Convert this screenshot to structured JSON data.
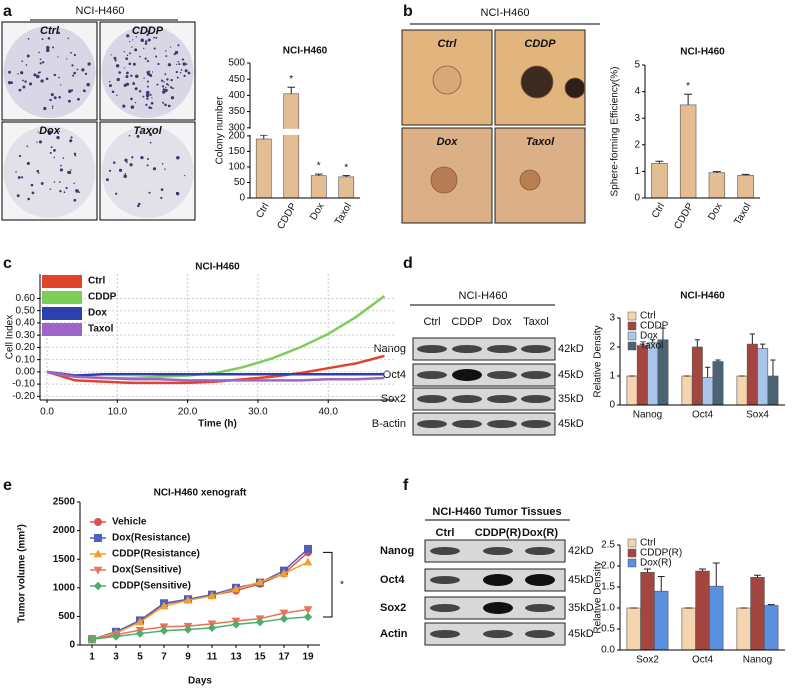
{
  "figure": {
    "panel_labels": [
      "a",
      "b",
      "c",
      "d",
      "e",
      "f"
    ],
    "colony_photos": {
      "title": "NCI-H460",
      "labels": [
        "Ctrl",
        "CDDP",
        "Dox",
        "Taxol"
      ]
    },
    "sphere_photos": {
      "title": "NCI-H460",
      "labels": [
        "Ctrl",
        "CDDP",
        "Dox",
        "Taxol"
      ]
    },
    "blot_d": {
      "title": "NCI-H460",
      "lanes": [
        "Ctrl",
        "CDDP",
        "Dox",
        "Taxol"
      ],
      "rows": [
        "Nanog",
        "Oct4",
        "Sox2",
        "B-actin"
      ],
      "sizes": [
        "42kD",
        "45kD",
        "35kD",
        "45kD"
      ]
    },
    "blot_f": {
      "title": "NCI-H460 Tumor Tissues",
      "lanes": [
        "Ctrl",
        "CDDP(R)",
        "Dox(R)"
      ],
      "rows": [
        "Nanog",
        "Oct4",
        "Sox2",
        "Actin"
      ],
      "sizes": [
        "42kD",
        "45kD",
        "35kD",
        "45kD"
      ]
    }
  },
  "chart_data": [
    {
      "type": "bar",
      "title": "NCI-H460",
      "y_label": "Colony number",
      "categories": [
        "Ctrl",
        "CDDP",
        "Dox",
        "Taxol"
      ],
      "values": [
        190,
        405,
        72,
        68
      ],
      "errors": [
        20,
        20,
        5,
        4
      ],
      "markers": [
        null,
        "*",
        "*",
        "*"
      ],
      "color": "#e3bd94",
      "ylim": [
        0,
        500
      ],
      "ybreak": [
        200,
        300
      ],
      "yticks": [
        0,
        50,
        100,
        150,
        200,
        300,
        350,
        400,
        450,
        500
      ]
    },
    {
      "type": "bar",
      "title": "NCI-H460",
      "y_label": "Sphere-forming Efficiency(%)",
      "categories": [
        "Ctrl",
        "CDDP",
        "Dox",
        "Taxol"
      ],
      "values": [
        1.3,
        3.5,
        0.95,
        0.85
      ],
      "errors": [
        0.08,
        0.4,
        0.04,
        0.04
      ],
      "markers": [
        null,
        "*",
        null,
        null
      ],
      "color": "#e3bd94",
      "ylim": [
        0,
        5
      ],
      "yticks": [
        0,
        1,
        2,
        3,
        4,
        5
      ]
    },
    {
      "type": "line",
      "title": "NCI-H460",
      "x_label": "Time (h)",
      "y_label": "Cell Index",
      "x": [
        0,
        4,
        8,
        12,
        16,
        20,
        24,
        28,
        32,
        36,
        40,
        44,
        48
      ],
      "series": [
        {
          "name": "Ctrl",
          "color": "#e0442a",
          "values": [
            0.0,
            -0.07,
            -0.08,
            -0.09,
            -0.09,
            -0.09,
            -0.08,
            -0.06,
            -0.04,
            -0.01,
            0.03,
            0.07,
            0.13
          ]
        },
        {
          "name": "CDDP",
          "color": "#7ccd5a",
          "values": [
            0.0,
            -0.04,
            -0.05,
            -0.05,
            -0.04,
            -0.03,
            -0.01,
            0.04,
            0.11,
            0.2,
            0.31,
            0.45,
            0.62
          ]
        },
        {
          "name": "Dox",
          "color": "#2e3fb0",
          "values": [
            0.0,
            -0.03,
            -0.02,
            -0.02,
            -0.02,
            -0.02,
            -0.02,
            -0.02,
            -0.02,
            -0.02,
            -0.02,
            -0.02,
            -0.02
          ]
        },
        {
          "name": "Taxol",
          "color": "#a064c8",
          "values": [
            0.0,
            -0.04,
            -0.05,
            -0.06,
            -0.06,
            -0.07,
            -0.07,
            -0.07,
            -0.07,
            -0.07,
            -0.06,
            -0.06,
            -0.05
          ]
        }
      ],
      "xlim": [
        -1,
        49.5
      ],
      "ylim": [
        -0.23,
        0.8
      ],
      "xticks": [
        {
          "value": 0,
          "label": "0.0"
        },
        {
          "value": 10,
          "label": "10.0"
        },
        {
          "value": 20,
          "label": "20.0"
        },
        {
          "value": 30,
          "label": "30.0"
        },
        {
          "value": 40,
          "label": "40.0"
        }
      ],
      "yticks": [
        {
          "value": -0.2,
          "label": "-0.20"
        },
        {
          "value": -0.1,
          "label": "-0.10"
        },
        {
          "value": 0,
          "label": "0.00"
        },
        {
          "value": 0.1,
          "label": "0.10"
        },
        {
          "value": 0.2,
          "label": "0.20"
        },
        {
          "value": 0.3,
          "label": "0.30"
        },
        {
          "value": 0.4,
          "label": "0.40"
        },
        {
          "value": 0.5,
          "label": "0.50"
        },
        {
          "value": 0.6,
          "label": "0.60"
        }
      ],
      "grid": true,
      "legend": "upper left"
    },
    {
      "type": "bar",
      "title": "NCI-H460",
      "y_label": "Relative Density",
      "categories": [
        "Nanog",
        "Oct4",
        "Sox4"
      ],
      "series": [
        {
          "name": "Ctrl",
          "color": "#f5d5b0",
          "values": [
            1,
            1,
            1
          ],
          "errors": [
            0,
            0,
            0
          ]
        },
        {
          "name": "CDDP",
          "color": "#a3463f",
          "values": [
            2.05,
            2.0,
            2.1
          ],
          "errors": [
            0.05,
            0.25,
            0.35
          ]
        },
        {
          "name": "Dox",
          "color": "#a9c6ea",
          "values": [
            2.15,
            0.95,
            1.95
          ],
          "errors": [
            0.1,
            0.35,
            0.15
          ]
        },
        {
          "name": "Taxol",
          "color": "#4b6473",
          "values": [
            2.25,
            1.5,
            1.0
          ],
          "errors": [
            0.4,
            0.05,
            0.55
          ]
        }
      ],
      "ylim": [
        0,
        3
      ],
      "yticks": [
        0,
        1,
        2,
        3
      ],
      "legend": "upper left"
    },
    {
      "type": "line",
      "title": "NCI-H460 xenograft",
      "x_label": "Days",
      "y_label": "Tumor volume (mm³)",
      "x": [
        1,
        3,
        5,
        7,
        9,
        11,
        13,
        15,
        17,
        19
      ],
      "series": [
        {
          "name": "Vehicle",
          "color": "#d9534f",
          "marker": "circle",
          "values": [
            100,
            220,
            420,
            720,
            790,
            870,
            950,
            1070,
            1250,
            1620
          ]
        },
        {
          "name": "Dox(Resistance)",
          "color": "#4f5fbf",
          "marker": "square",
          "values": [
            100,
            230,
            430,
            730,
            800,
            880,
            1000,
            1090,
            1300,
            1680
          ]
        },
        {
          "name": "CDDP(Resistance)",
          "color": "#f0a030",
          "marker": "triangle-up",
          "values": [
            100,
            210,
            400,
            680,
            780,
            860,
            980,
            1100,
            1250,
            1450
          ]
        },
        {
          "name": "Dox(Sensitive)",
          "color": "#e8735a",
          "marker": "triangle-down",
          "values": [
            100,
            180,
            260,
            320,
            330,
            370,
            420,
            460,
            560,
            620
          ]
        },
        {
          "name": "CDDP(Sensitive)",
          "color": "#4caf6a",
          "marker": "diamond",
          "values": [
            100,
            150,
            200,
            250,
            270,
            300,
            360,
            400,
            460,
            490
          ]
        }
      ],
      "xlim": [
        0,
        20
      ],
      "ylim": [
        0,
        2500
      ],
      "xticks": [
        1,
        3,
        5,
        7,
        9,
        11,
        13,
        15,
        17,
        19
      ],
      "yticks": [
        0,
        500,
        1000,
        1500,
        2000,
        2500
      ],
      "legend": "upper left",
      "annotation": "*"
    },
    {
      "type": "bar",
      "y_label": "Relative Density",
      "categories": [
        "Sox2",
        "Oct4",
        "Nanog"
      ],
      "series": [
        {
          "name": "Ctrl",
          "color": "#f5d5b0",
          "values": [
            1,
            1,
            1
          ],
          "errors": [
            0,
            0,
            0
          ]
        },
        {
          "name": "CDDP(R)",
          "color": "#a3463f",
          "values": [
            1.85,
            1.88,
            1.73
          ],
          "errors": [
            0.08,
            0.05,
            0.05
          ]
        },
        {
          "name": "Dox(R)",
          "color": "#5b8fe0",
          "values": [
            1.4,
            1.52,
            1.06
          ],
          "errors": [
            0.35,
            0.55,
            0.02
          ]
        }
      ],
      "ylim": [
        0,
        2.5
      ],
      "yticks": [
        {
          "value": 0,
          "label": "0.0"
        },
        0.5,
        {
          "value": 1,
          "label": "1.0"
        },
        1.5,
        {
          "value": 2,
          "label": "2.0"
        },
        2.5
      ],
      "legend": "upper left"
    }
  ]
}
